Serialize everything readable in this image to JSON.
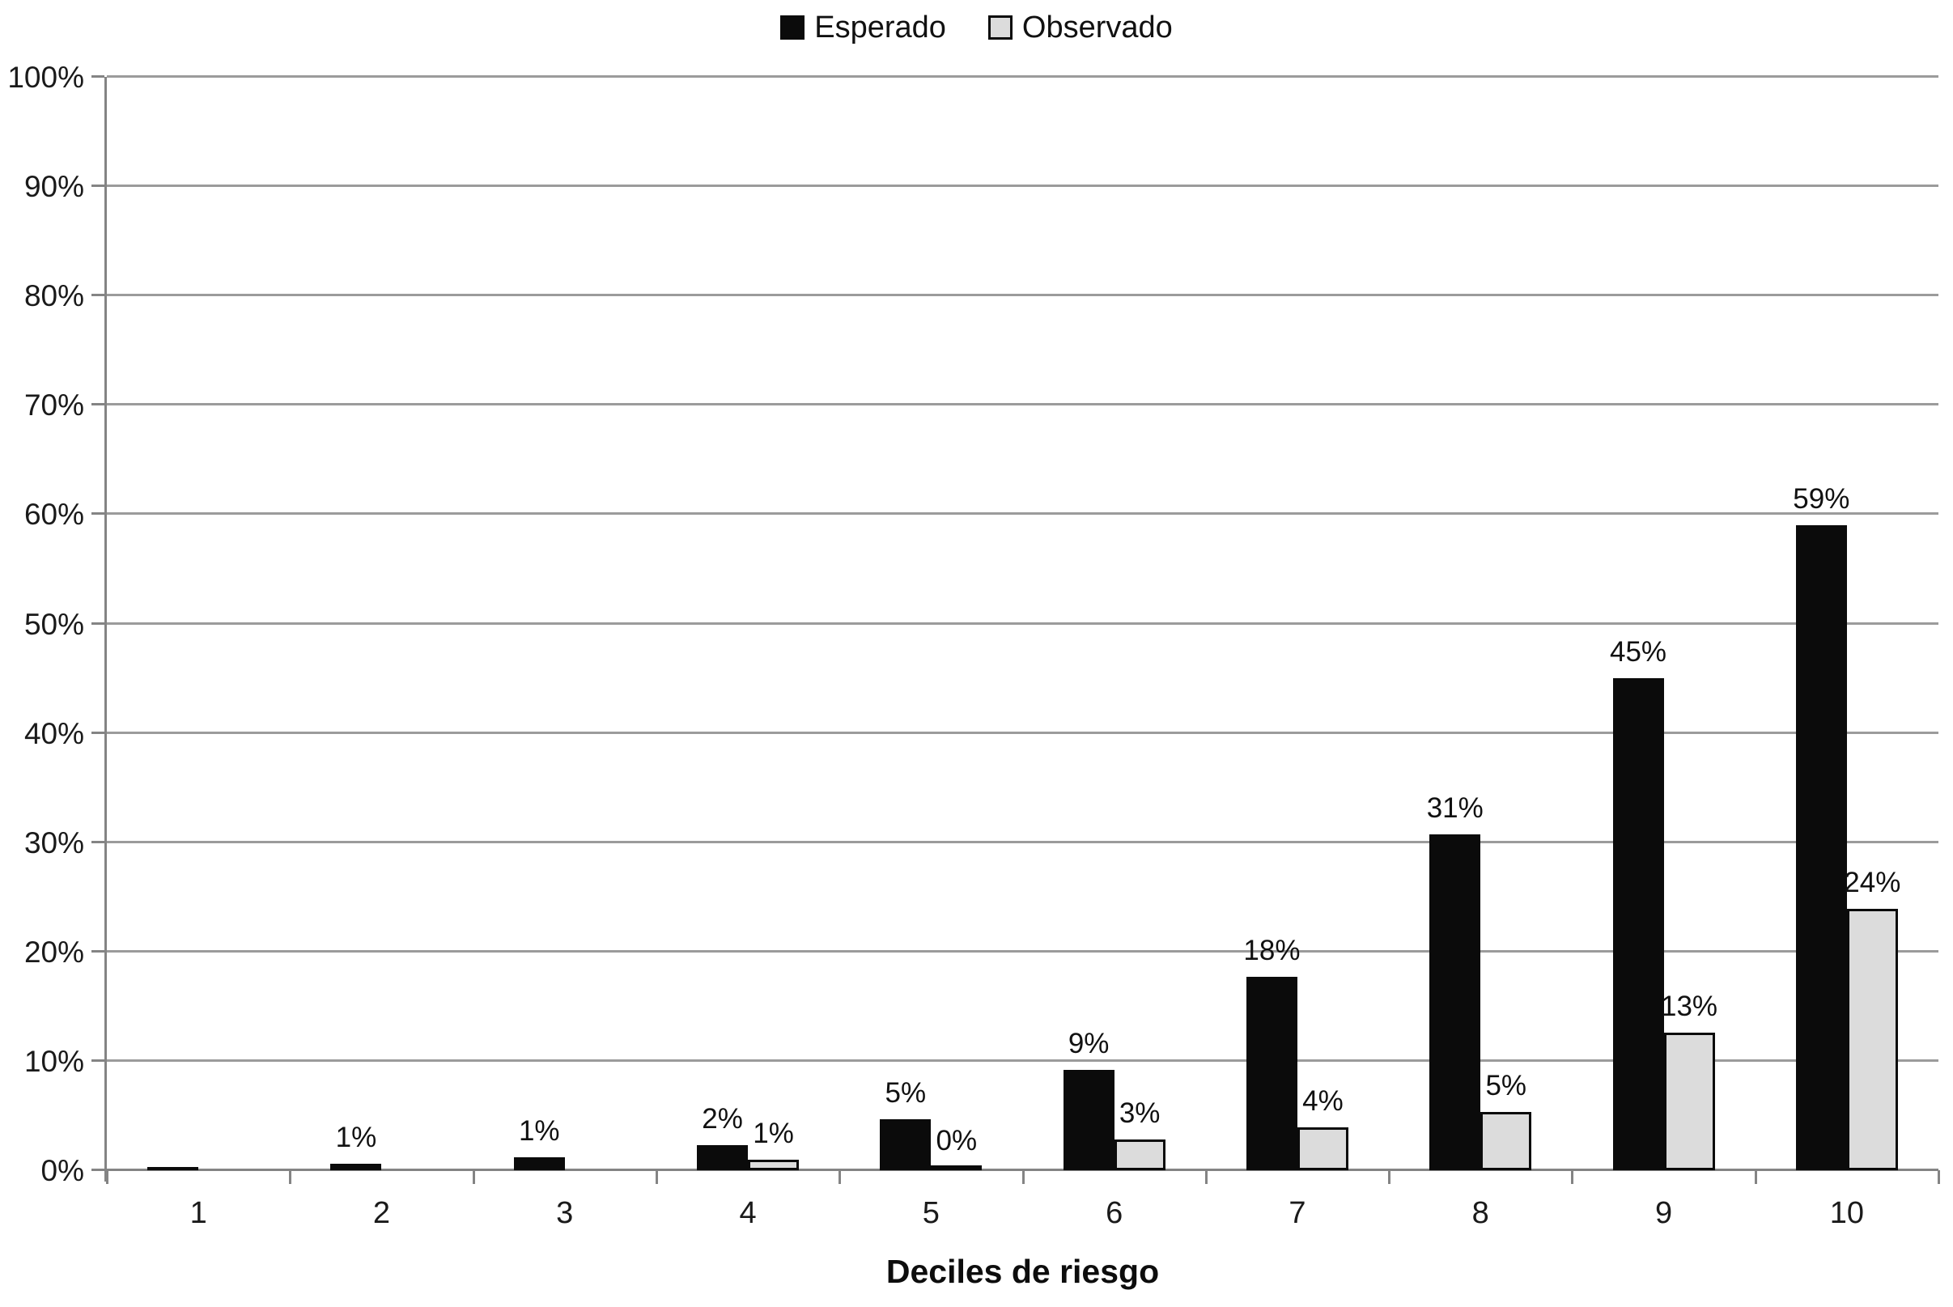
{
  "chart_data": {
    "type": "bar",
    "title": "",
    "xlabel": "Deciles de riesgo",
    "ylabel": "",
    "ylim": [
      0,
      100
    ],
    "y_tick_step": 10,
    "grid": true,
    "legend_position": "top-center",
    "categories": [
      "1",
      "2",
      "3",
      "4",
      "5",
      "6",
      "7",
      "8",
      "9",
      "10"
    ],
    "y_ticks": [
      "0%",
      "10%",
      "20%",
      "30%",
      "40%",
      "50%",
      "60%",
      "70%",
      "80%",
      "90%",
      "100%"
    ],
    "series": [
      {
        "name": "Esperado",
        "fill": "#0b0b0b",
        "border": "#0b0b0b",
        "values": [
          0.3,
          0.6,
          1.2,
          2.3,
          4.7,
          9.2,
          17.7,
          30.7,
          45.0,
          59.0
        ],
        "labels": [
          "",
          "1%",
          "1%",
          "2%",
          "5%",
          "9%",
          "18%",
          "31%",
          "45%",
          "59%"
        ]
      },
      {
        "name": "Observado",
        "fill": "#dcdcdc",
        "border": "#0b0b0b",
        "values": [
          0,
          0,
          0,
          1.0,
          0.3,
          2.8,
          3.9,
          5.3,
          12.6,
          23.9
        ],
        "labels": [
          "",
          "",
          "",
          "1%",
          "0%",
          "3%",
          "4%",
          "5%",
          "13%",
          "24%"
        ]
      }
    ]
  },
  "colors": {
    "background": "#ffffff",
    "gridline": "#9b9b9b",
    "axis": "#848484",
    "text": "#1a1a1a"
  }
}
